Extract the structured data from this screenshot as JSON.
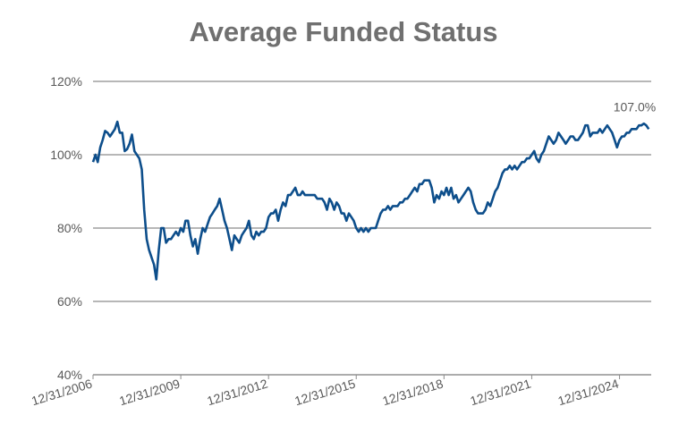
{
  "chart_data": {
    "type": "line",
    "title": "Average Funded Status",
    "x": [
      "2006-12-31",
      "2007-01-31",
      "2007-02-28",
      "2007-03-31",
      "2007-04-30",
      "2007-05-31",
      "2007-06-30",
      "2007-07-31",
      "2007-08-31",
      "2007-09-30",
      "2007-10-31",
      "2007-11-30",
      "2007-12-31",
      "2008-01-31",
      "2008-02-29",
      "2008-03-31",
      "2008-04-30",
      "2008-05-31",
      "2008-06-30",
      "2008-07-31",
      "2008-08-31",
      "2008-09-30",
      "2008-10-31",
      "2008-11-30",
      "2008-12-31",
      "2009-01-31",
      "2009-02-28",
      "2009-03-31",
      "2009-04-30",
      "2009-05-31",
      "2009-06-30",
      "2009-07-31",
      "2009-08-31",
      "2009-09-30",
      "2009-10-31",
      "2009-11-30",
      "2009-12-31",
      "2010-01-31",
      "2010-02-28",
      "2010-03-31",
      "2010-04-30",
      "2010-05-31",
      "2010-06-30",
      "2010-07-31",
      "2010-08-31",
      "2010-09-30",
      "2010-10-31",
      "2010-11-30",
      "2010-12-31",
      "2011-01-31",
      "2011-02-28",
      "2011-03-31",
      "2011-04-30",
      "2011-05-31",
      "2011-06-30",
      "2011-07-31",
      "2011-08-31",
      "2011-09-30",
      "2011-10-31",
      "2011-11-30",
      "2011-12-31",
      "2012-01-31",
      "2012-02-29",
      "2012-03-31",
      "2012-04-30",
      "2012-05-31",
      "2012-06-30",
      "2012-07-31",
      "2012-08-31",
      "2012-09-30",
      "2012-10-31",
      "2012-11-30",
      "2012-12-31",
      "2013-01-31",
      "2013-02-28",
      "2013-03-31",
      "2013-04-30",
      "2013-05-31",
      "2013-06-30",
      "2013-07-31",
      "2013-08-31",
      "2013-09-30",
      "2013-10-31",
      "2013-11-30",
      "2013-12-31",
      "2014-01-31",
      "2014-02-28",
      "2014-03-31",
      "2014-04-30",
      "2014-05-31",
      "2014-06-30",
      "2014-07-31",
      "2014-08-31",
      "2014-09-30",
      "2014-10-31",
      "2014-11-30",
      "2014-12-31",
      "2015-01-31",
      "2015-02-28",
      "2015-03-31",
      "2015-04-30",
      "2015-05-31",
      "2015-06-30",
      "2015-07-31",
      "2015-08-31",
      "2015-09-30",
      "2015-10-31",
      "2015-11-30",
      "2015-12-31",
      "2016-01-31",
      "2016-02-29",
      "2016-03-31",
      "2016-04-30",
      "2016-05-31",
      "2016-06-30",
      "2016-07-31",
      "2016-08-31",
      "2016-09-30",
      "2016-10-31",
      "2016-11-30",
      "2016-12-31",
      "2017-01-31",
      "2017-02-28",
      "2017-03-31",
      "2017-04-30",
      "2017-05-31",
      "2017-06-30",
      "2017-07-31",
      "2017-08-31",
      "2017-09-30",
      "2017-10-31",
      "2017-11-30",
      "2017-12-31",
      "2018-01-31",
      "2018-02-28",
      "2018-03-31",
      "2018-04-30",
      "2018-05-31",
      "2018-06-30",
      "2018-07-31",
      "2018-08-31",
      "2018-09-30",
      "2018-10-31",
      "2018-11-30",
      "2018-12-31",
      "2019-01-31",
      "2019-02-28",
      "2019-03-31",
      "2019-04-30",
      "2019-05-31",
      "2019-06-30",
      "2019-07-31",
      "2019-08-31",
      "2019-09-30",
      "2019-10-31",
      "2019-11-30",
      "2019-12-31",
      "2020-01-31",
      "2020-02-29",
      "2020-03-31",
      "2020-04-30",
      "2020-05-31",
      "2020-06-30",
      "2020-07-31",
      "2020-08-31",
      "2020-09-30",
      "2020-10-31",
      "2020-11-30",
      "2020-12-31",
      "2021-01-31",
      "2021-02-28",
      "2021-03-31",
      "2021-04-30",
      "2021-05-31",
      "2021-06-30",
      "2021-07-31",
      "2021-08-31",
      "2021-09-30",
      "2021-10-31",
      "2021-11-30",
      "2021-12-31",
      "2022-01-31",
      "2022-02-28",
      "2022-03-31",
      "2022-04-30",
      "2022-05-31",
      "2022-06-30",
      "2022-07-31",
      "2022-08-31",
      "2022-09-30",
      "2022-10-31",
      "2022-11-30",
      "2022-12-31",
      "2023-01-31",
      "2023-02-28",
      "2023-03-31",
      "2023-04-30",
      "2023-05-31",
      "2023-06-30",
      "2023-07-31",
      "2023-08-31",
      "2023-09-30",
      "2023-10-31",
      "2023-11-30",
      "2023-12-31",
      "2024-01-31",
      "2024-02-29",
      "2024-03-31",
      "2024-04-30",
      "2024-05-31",
      "2024-06-30",
      "2024-07-31",
      "2024-08-31",
      "2024-09-30",
      "2024-10-31",
      "2024-11-30",
      "2024-12-31",
      "2025-01-31",
      "2025-02-28",
      "2025-03-31",
      "2025-04-30",
      "2025-05-31",
      "2025-06-30",
      "2025-07-31",
      "2025-08-31",
      "2025-09-30",
      "2025-10-31",
      "2025-11-30",
      "2025-12-31"
    ],
    "series": [
      {
        "name": "Average Funded Status",
        "color": "#0d4e8b",
        "values": [
          98,
          100,
          98,
          102,
          104,
          106.5,
          106,
          105,
          106,
          107,
          109,
          106,
          106,
          101,
          101.5,
          103,
          105.5,
          101,
          100,
          99,
          96,
          85,
          77,
          74,
          72,
          70,
          66,
          74,
          80,
          80,
          76,
          77,
          77,
          78,
          79,
          78,
          80,
          79,
          82,
          82,
          78,
          75,
          77,
          73,
          77,
          80,
          79,
          81,
          83,
          84,
          85,
          86,
          88,
          85,
          82,
          80,
          77,
          74,
          78,
          77,
          76,
          78,
          79,
          80,
          82,
          78,
          77,
          79,
          78,
          79,
          79,
          80,
          83,
          84,
          84,
          85,
          82,
          85,
          87,
          86,
          89,
          89,
          90,
          91,
          89,
          89,
          90,
          89,
          89,
          89,
          89,
          89,
          88,
          88,
          88,
          87,
          85,
          88,
          87,
          85,
          87,
          86,
          84,
          84,
          82,
          84,
          83,
          82,
          80,
          79,
          80,
          79,
          80,
          79,
          80,
          80,
          80,
          82,
          84,
          85,
          85,
          86,
          85,
          86,
          86,
          86,
          87,
          87,
          88,
          88,
          89,
          90,
          91,
          90,
          92,
          92,
          93,
          93,
          93,
          91,
          87,
          89,
          88,
          90,
          89,
          91,
          89,
          91,
          88,
          89,
          87,
          88,
          89,
          90,
          91,
          90,
          87,
          85,
          84,
          84,
          84,
          85,
          87,
          86,
          88,
          90,
          91,
          93,
          95,
          96,
          96,
          97,
          96,
          97,
          96,
          97,
          98,
          98,
          99,
          99,
          100,
          101,
          99,
          98,
          100,
          101,
          103,
          105,
          104,
          103,
          104,
          106,
          105,
          104,
          103,
          104,
          105,
          105,
          104,
          104,
          105,
          106,
          108,
          108,
          105,
          106,
          106,
          106,
          107,
          106,
          107,
          108,
          107,
          106,
          104,
          102,
          104,
          105,
          105,
          106,
          106,
          107,
          107,
          107,
          108,
          108,
          108.5,
          108,
          107
        ]
      }
    ],
    "last_value_label": "107.0%",
    "xlim": [
      "2006-12-31",
      "2026-01-31"
    ],
    "xticks": [
      {
        "value": "2006-12-31",
        "label": "12/31/2006"
      },
      {
        "value": "2009-12-31",
        "label": "12/31/2009"
      },
      {
        "value": "2012-12-31",
        "label": "12/31/2012"
      },
      {
        "value": "2015-12-31",
        "label": "12/31/2015"
      },
      {
        "value": "2018-12-31",
        "label": "12/31/2018"
      },
      {
        "value": "2021-12-31",
        "label": "12/31/2021"
      },
      {
        "value": "2024-12-31",
        "label": "12/31/2024"
      }
    ],
    "ylim": [
      40,
      120
    ],
    "yticks": [
      {
        "value": 40,
        "label": "40%"
      },
      {
        "value": 60,
        "label": "60%"
      },
      {
        "value": 80,
        "label": "80%"
      },
      {
        "value": 100,
        "label": "100%"
      },
      {
        "value": 120,
        "label": "120%"
      }
    ],
    "grid": true
  }
}
